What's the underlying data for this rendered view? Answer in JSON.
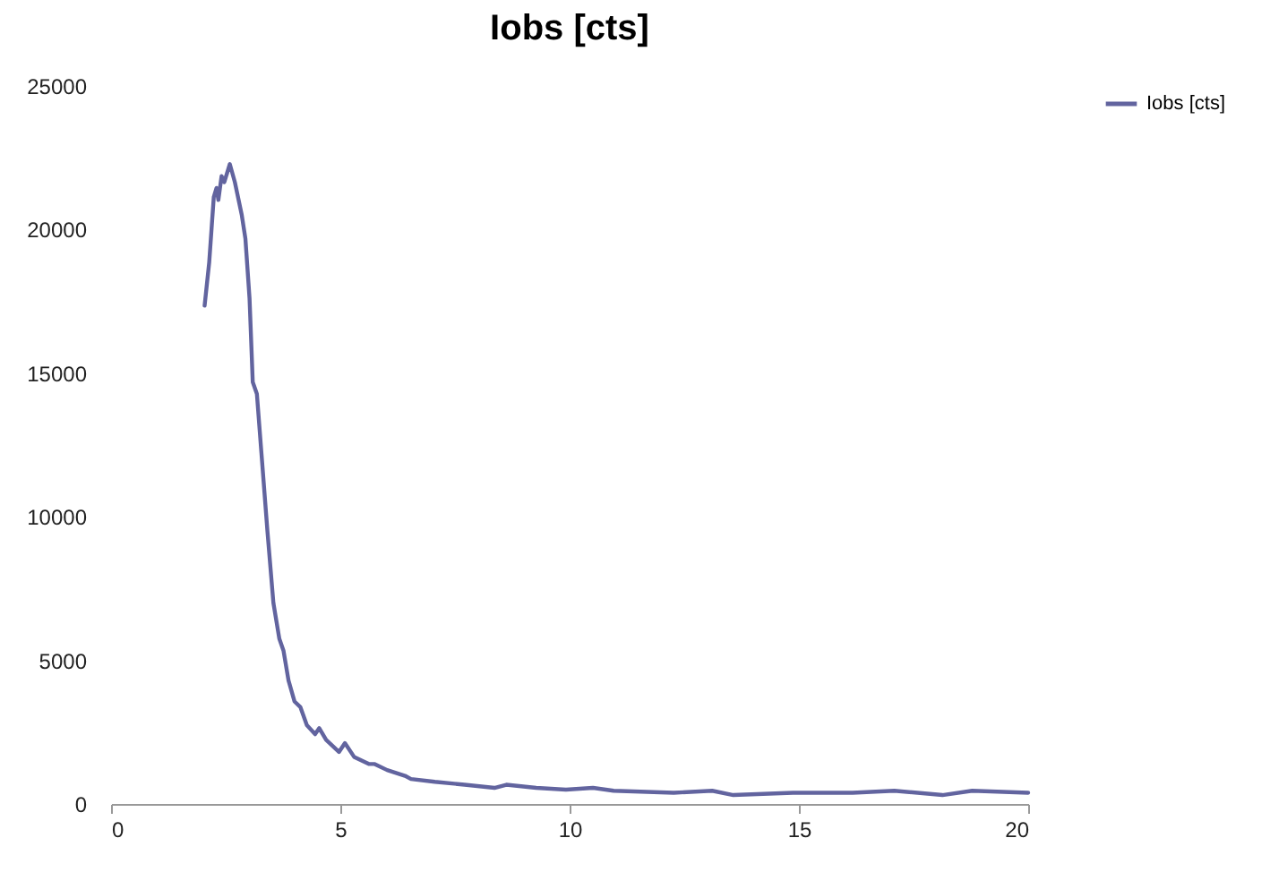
{
  "chart_data": {
    "type": "line",
    "title": "Iobs [cts]",
    "xlim": [
      0,
      20
    ],
    "xticks": [
      0,
      5,
      10,
      15,
      20
    ],
    "ylim": [
      0,
      25000
    ],
    "yticks": [
      0,
      5000,
      10000,
      15000,
      20000,
      25000
    ],
    "grid": false,
    "legend": "right",
    "marker": "none",
    "line_style": "solid",
    "x": [
      2.04,
      2.14,
      2.24,
      2.3,
      2.34,
      2.41,
      2.47,
      2.59,
      2.7,
      2.85,
      2.93,
      3.02,
      3.09,
      3.18,
      3.28,
      3.41,
      3.54,
      3.67,
      3.76,
      3.87,
      4.0,
      4.13,
      4.27,
      4.45,
      4.54,
      4.69,
      4.97,
      5.1,
      5.3,
      5.63,
      5.75,
      6.02,
      6.41,
      6.54,
      7.06,
      7.71,
      8.36,
      8.62,
      9.27,
      9.92,
      10.51,
      10.96,
      12.27,
      13.11,
      13.57,
      14.87,
      16.17,
      17.08,
      18.13,
      18.78,
      20.0
    ],
    "series": [
      {
        "name": "Iobs [cts]",
        "color": "#62649f",
        "values": [
          17350,
          18850,
          21130,
          21450,
          21030,
          21860,
          21650,
          22280,
          21650,
          20510,
          19680,
          17600,
          14690,
          14280,
          12200,
          9500,
          7000,
          5750,
          5340,
          4300,
          3570,
          3370,
          2740,
          2430,
          2640,
          2230,
          1810,
          2120,
          1640,
          1390,
          1390,
          1180,
          980,
          870,
          770,
          670,
          560,
          670,
          560,
          500,
          560,
          460,
          390,
          460,
          310,
          390,
          390,
          460,
          310,
          460,
          390
        ]
      }
    ]
  }
}
